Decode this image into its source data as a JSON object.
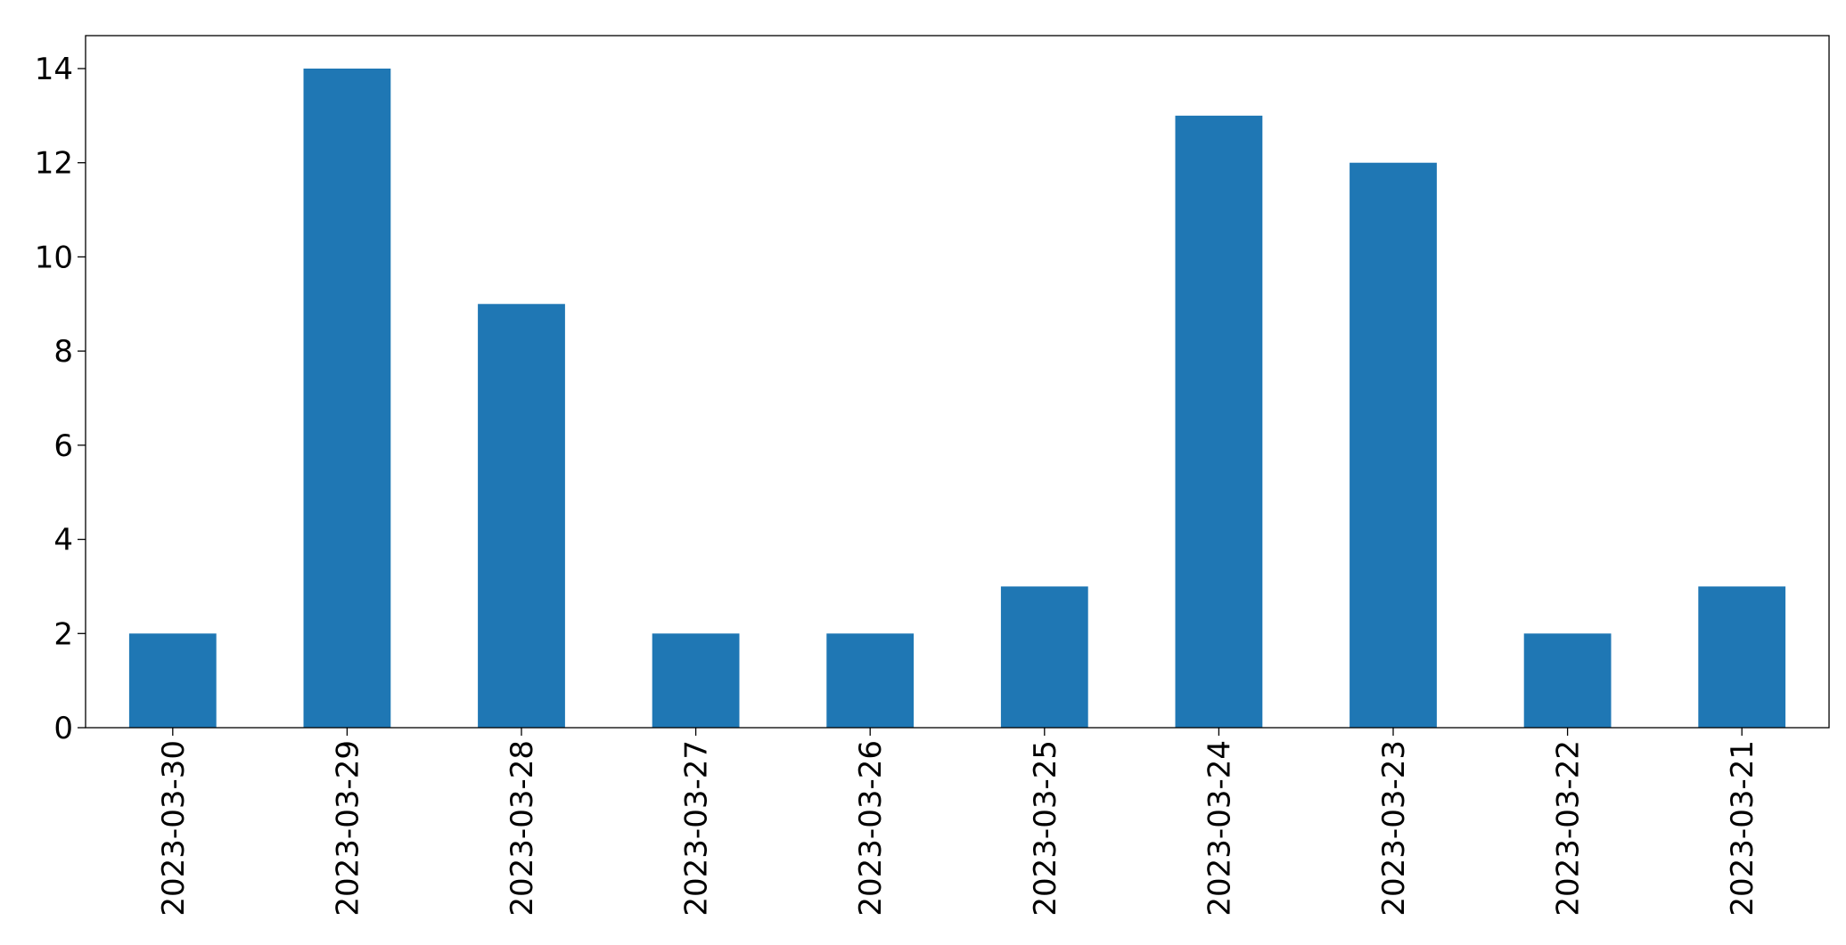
{
  "chart_data": {
    "type": "bar",
    "categories": [
      "2023-03-30",
      "2023-03-29",
      "2023-03-28",
      "2023-03-27",
      "2023-03-26",
      "2023-03-25",
      "2023-03-24",
      "2023-03-23",
      "2023-03-22",
      "2023-03-21"
    ],
    "values": [
      2,
      14,
      9,
      2,
      2,
      3,
      13,
      12,
      2,
      3
    ],
    "color": "#1f77b4",
    "ylim": [
      0,
      14.7
    ],
    "yticks": [
      0,
      2,
      4,
      6,
      8,
      10,
      12,
      14
    ],
    "grid": false
  }
}
